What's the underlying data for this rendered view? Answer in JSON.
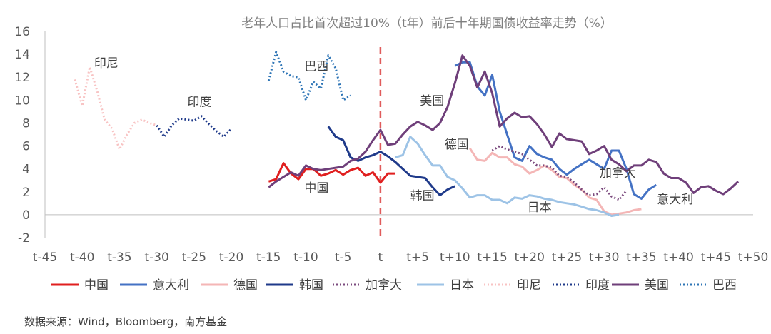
{
  "chart_data": {
    "type": "line",
    "title": "老年人口占比首次超过10%（t年）前后十年期国债收益率走势（%）",
    "source": "数据来源：Wind，Bloomberg，南方基金",
    "ylim": [
      -2,
      16
    ],
    "yticks": [
      "16",
      "14",
      "12",
      "10",
      "8",
      "6",
      "4",
      "2",
      "0",
      "-2"
    ],
    "ytick_values": [
      16,
      14,
      12,
      10,
      8,
      6,
      4,
      2,
      0,
      -2
    ],
    "xlim": [
      -45,
      50
    ],
    "xticks": [
      "t-45",
      "t-40",
      "t-35",
      "t-30",
      "t-25",
      "t-20",
      "t-15",
      "t-10",
      "t-5",
      "t",
      "t+5",
      "t+10",
      "t+15",
      "t+20",
      "t+25",
      "t+30",
      "t+35",
      "t+40",
      "t+45",
      "t+50"
    ],
    "xtick_values": [
      -45,
      -40,
      -35,
      -30,
      -25,
      -20,
      -15,
      -10,
      -5,
      0,
      5,
      10,
      15,
      20,
      25,
      30,
      35,
      40,
      45,
      50
    ],
    "reference_line_x": 0,
    "grid": false,
    "legend_position": "bottom",
    "series": [
      {
        "name": "中国",
        "color": "#e01f1f",
        "dash": "solid",
        "x": [
          -15,
          -14,
          -13,
          -12,
          -11,
          -10,
          -9,
          -8,
          -7,
          -6,
          -5,
          -4,
          -3,
          -2,
          -1,
          0,
          1,
          2
        ],
        "values": [
          2.9,
          3.1,
          4.5,
          3.6,
          3.1,
          4.0,
          4.0,
          3.4,
          3.6,
          3.9,
          3.5,
          3.9,
          4.1,
          3.4,
          3.7,
          2.8,
          3.6,
          3.6
        ]
      },
      {
        "name": "意大利",
        "color": "#4472c4",
        "dash": "solid",
        "x": [
          10,
          11,
          12,
          13,
          14,
          15,
          16,
          17,
          18,
          19,
          20,
          21,
          22,
          23,
          24,
          25,
          26,
          27,
          28,
          29,
          30,
          31,
          32,
          33,
          34,
          35,
          36,
          37
        ],
        "values": [
          13.0,
          13.3,
          13.3,
          11.2,
          10.4,
          12.2,
          9.0,
          7.0,
          5.0,
          4.7,
          6.0,
          5.3,
          5.0,
          4.8,
          4.0,
          3.5,
          4.0,
          4.4,
          4.8,
          4.4,
          4.0,
          5.6,
          5.6,
          4.0,
          1.8,
          1.4,
          2.2,
          2.6
        ]
      },
      {
        "name": "德国",
        "color": "#f4b6b6",
        "dash": "solid",
        "x": [
          12,
          13,
          14,
          15,
          16,
          17,
          18,
          19,
          20,
          21,
          22,
          23,
          24,
          25,
          26,
          27,
          28,
          29,
          30,
          31,
          32,
          33,
          34,
          35
        ],
        "values": [
          5.8,
          4.8,
          4.7,
          5.4,
          5.0,
          5.0,
          4.4,
          4.2,
          3.6,
          3.9,
          4.3,
          3.9,
          3.3,
          3.2,
          2.6,
          2.2,
          1.5,
          1.3,
          0.3,
          0.0,
          0.1,
          0.2,
          0.4,
          0.5
        ]
      },
      {
        "name": "韩国",
        "color": "#1f3a8a",
        "dash": "solid",
        "x": [
          -7,
          -6,
          -5,
          -4,
          -3,
          -2,
          -1,
          0,
          1,
          2,
          3,
          4,
          5,
          6,
          7,
          8,
          9,
          10
        ],
        "values": [
          7.7,
          6.8,
          6.5,
          5.0,
          4.7,
          5.0,
          5.2,
          5.5,
          5.1,
          4.6,
          4.0,
          3.4,
          3.3,
          3.2,
          2.4,
          1.7,
          2.2,
          2.5
        ]
      },
      {
        "name": "加拿大",
        "color": "#7b4a7e",
        "dash": "dotted",
        "x": [
          15,
          16,
          17,
          18,
          19,
          20,
          21,
          22,
          23,
          24,
          25,
          26,
          27,
          28,
          29,
          30,
          31,
          32,
          33
        ],
        "values": [
          5.6,
          6.0,
          5.7,
          5.5,
          5.3,
          4.8,
          4.3,
          4.3,
          4.1,
          3.4,
          3.3,
          2.8,
          2.2,
          1.7,
          1.8,
          2.4,
          1.6,
          1.3,
          2.1
        ]
      },
      {
        "name": "日本",
        "color": "#9dc3e6",
        "dash": "solid",
        "x": [
          2,
          3,
          4,
          5,
          6,
          7,
          8,
          9,
          10,
          11,
          12,
          13,
          14,
          15,
          16,
          17,
          18,
          19,
          20,
          21,
          22,
          23,
          24,
          25,
          26,
          27,
          28,
          29,
          30,
          31,
          32
        ],
        "values": [
          5.0,
          5.2,
          6.8,
          6.2,
          5.2,
          4.3,
          4.3,
          3.3,
          3.0,
          2.3,
          1.5,
          1.7,
          1.7,
          1.3,
          1.3,
          1.0,
          1.5,
          1.4,
          1.7,
          1.6,
          1.4,
          1.3,
          1.1,
          1.0,
          0.9,
          0.7,
          0.5,
          0.4,
          0.2,
          -0.1,
          0.0
        ]
      },
      {
        "name": "印尼",
        "color": "#f8c3c3",
        "dash": "dotted",
        "x": [
          -41,
          -40,
          -39,
          -38,
          -37,
          -36,
          -35,
          -34,
          -33,
          -32,
          -31,
          -30
        ],
        "values": [
          11.8,
          9.5,
          12.9,
          10.8,
          8.3,
          7.5,
          5.7,
          7.0,
          8.0,
          8.3,
          8.0,
          7.8
        ]
      },
      {
        "name": "印度",
        "color": "#1f3a8a",
        "dash": "dotted",
        "x": [
          -30,
          -29,
          -28,
          -27,
          -26,
          -25,
          -24,
          -23,
          -22,
          -21,
          -20
        ],
        "values": [
          7.8,
          6.8,
          7.8,
          8.4,
          8.3,
          8.2,
          8.6,
          7.9,
          7.3,
          6.8,
          7.5
        ]
      },
      {
        "name": "美国",
        "color": "#6f3f7a",
        "dash": "solid",
        "x": [
          -15,
          -14,
          -13,
          -12,
          -11,
          -10,
          -9,
          -8,
          -7,
          -6,
          -5,
          -4,
          -3,
          -2,
          -1,
          0,
          1,
          2,
          3,
          4,
          5,
          6,
          7,
          8,
          9,
          10,
          11,
          12,
          13,
          14,
          15,
          16,
          17,
          18,
          19,
          20,
          21,
          22,
          23,
          24,
          25,
          26,
          27,
          28,
          29,
          30,
          31,
          32,
          33,
          34,
          35,
          36,
          37,
          38,
          39,
          40,
          41,
          42,
          43,
          44,
          45,
          46,
          47,
          48
        ],
        "values": [
          2.4,
          2.9,
          3.3,
          3.7,
          3.4,
          4.3,
          4.0,
          3.9,
          4.0,
          4.1,
          4.2,
          4.7,
          4.9,
          5.5,
          6.5,
          7.4,
          6.1,
          6.2,
          7.0,
          7.7,
          8.1,
          7.8,
          7.4,
          8.0,
          9.4,
          11.5,
          13.9,
          13.0,
          11.1,
          12.5,
          10.6,
          7.7,
          8.4,
          8.9,
          8.5,
          8.6,
          7.9,
          7.0,
          5.9,
          7.1,
          6.6,
          6.5,
          6.4,
          5.3,
          5.6,
          6.0,
          4.8,
          4.4,
          3.8,
          4.3,
          4.3,
          4.8,
          4.6,
          3.6,
          3.2,
          3.2,
          2.8,
          1.9,
          2.4,
          2.5,
          2.1,
          1.8,
          2.3,
          2.9
        ]
      },
      {
        "name": "巴西",
        "color": "#2e75b6",
        "dash": "dotted",
        "x": [
          -15,
          -14,
          -13,
          -12,
          -11,
          -10,
          -9,
          -8,
          -7,
          -6,
          -5,
          -4
        ],
        "values": [
          11.7,
          14.2,
          12.5,
          12.1,
          12.0,
          10.0,
          11.6,
          11.0,
          13.9,
          12.8,
          10.0,
          10.4
        ]
      }
    ],
    "annotations": [
      {
        "text": "印尼",
        "x": -38.4,
        "y": 12.9
      },
      {
        "text": "印度",
        "x": -25.9,
        "y": 9.5
      },
      {
        "text": "巴西",
        "x": -10.2,
        "y": 12.6
      },
      {
        "text": "中国",
        "x": -10.2,
        "y": 2.0
      },
      {
        "text": "美国",
        "x": 5.3,
        "y": 9.6
      },
      {
        "text": "德国",
        "x": 8.6,
        "y": 5.8
      },
      {
        "text": "加拿大",
        "x": 29.4,
        "y": 3.3
      },
      {
        "text": "韩国",
        "x": 4.0,
        "y": 1.3
      },
      {
        "text": "日本",
        "x": 19.7,
        "y": 0.3
      },
      {
        "text": "意大利",
        "x": 37.1,
        "y": 1.0
      }
    ]
  }
}
